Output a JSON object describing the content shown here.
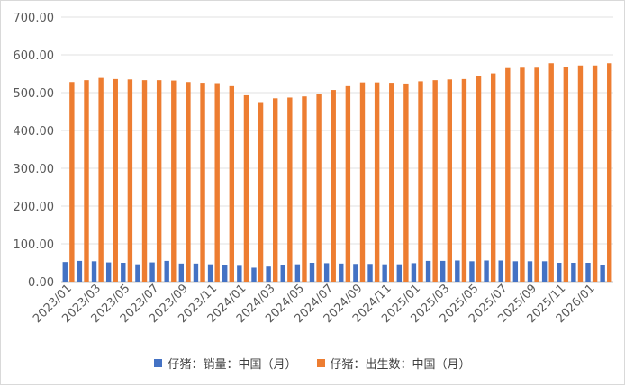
{
  "chart_data": {
    "type": "bar",
    "categories": [
      "2023/01",
      "2023/02",
      "2023/03",
      "2023/04",
      "2023/05",
      "2023/06",
      "2023/07",
      "2023/08",
      "2023/09",
      "2023/10",
      "2023/11",
      "2023/12",
      "2024/01",
      "2024/02",
      "2024/03",
      "2024/04",
      "2024/05",
      "2024/06",
      "2024/07",
      "2024/08",
      "2024/09",
      "2024/10",
      "2024/11",
      "2024/12",
      "2025/01",
      "2025/02",
      "2025/03",
      "2025/04",
      "2025/05",
      "2025/06",
      "2025/07",
      "2025/08",
      "2025/09",
      "2025/10",
      "2025/11",
      "2025/12",
      "2026/01",
      "2026/02"
    ],
    "x_tick_labels": [
      "2023/01",
      "2023/03",
      "2023/05",
      "2023/07",
      "2023/09",
      "2023/11",
      "2024/01",
      "2024/03",
      "2024/05",
      "2024/07",
      "2024/09",
      "2024/11",
      "2025/01",
      "2025/03",
      "2025/05",
      "2025/07",
      "2025/09",
      "2025/11",
      "2026/01"
    ],
    "y_tick_labels": [
      "0.00",
      "100.00",
      "200.00",
      "300.00",
      "400.00",
      "500.00",
      "600.00",
      "700.00"
    ],
    "ylim": [
      0,
      700
    ],
    "grid": true,
    "legend_position": "bottom",
    "title": "",
    "xlabel": "",
    "ylabel": "",
    "series": [
      {
        "name": "仔猪：销量：中国（月）",
        "color": "#4472c4",
        "values": [
          52,
          55,
          54,
          51,
          50,
          46,
          51,
          55,
          48,
          48,
          46,
          44,
          42,
          37,
          40,
          45,
          46,
          50,
          49,
          48,
          47,
          47,
          46,
          46,
          49,
          55,
          55,
          56,
          54,
          56,
          56,
          54,
          54,
          54,
          50,
          50,
          50,
          45
        ]
      },
      {
        "name": "仔猪：出生数：中国（月）",
        "color": "#ed7d31",
        "values": [
          528,
          533,
          539,
          536,
          535,
          533,
          533,
          532,
          528,
          526,
          525,
          517,
          493,
          475,
          485,
          487,
          490,
          497,
          507,
          517,
          527,
          527,
          526,
          524,
          530,
          533,
          535,
          536,
          543,
          551,
          565,
          566,
          566,
          578,
          569,
          572,
          572,
          578
        ]
      }
    ]
  }
}
